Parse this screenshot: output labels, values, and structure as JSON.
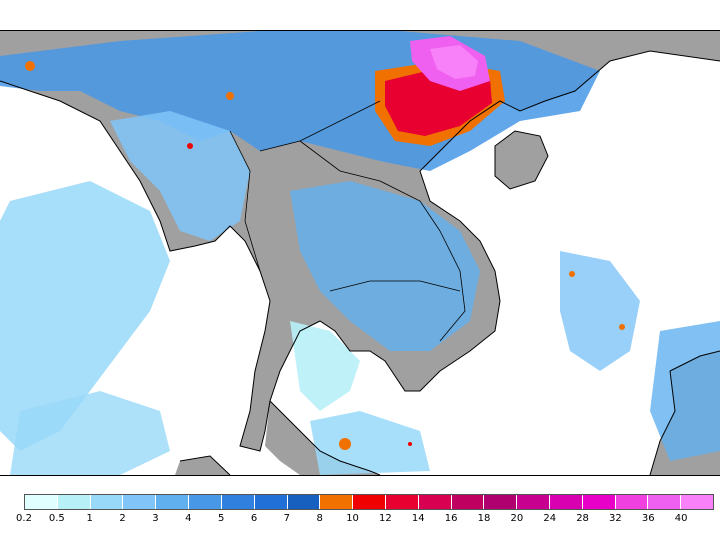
{
  "map": {
    "layers": [
      "land",
      "precipitation",
      "coastline",
      "borders"
    ],
    "land_color": "#a0a0a0",
    "ocean_color": "#ffffff",
    "coastline_color": "#000000"
  },
  "legend": {
    "tick_labels": [
      "0.2",
      "0.5",
      "1",
      "2",
      "3",
      "4",
      "5",
      "6",
      "7",
      "8",
      "10",
      "12",
      "14",
      "16",
      "18",
      "20",
      "24",
      "28",
      "32",
      "36",
      "40"
    ],
    "colors": [
      "#e0ffff",
      "#b8f0f8",
      "#98d8f8",
      "#80c4f8",
      "#60b0f0",
      "#4898e8",
      "#3080e0",
      "#2070d8",
      "#1860c0",
      "#f07000",
      "#f00000",
      "#e80030",
      "#d80050",
      "#c00060",
      "#b00070",
      "#c80090",
      "#d800b0",
      "#e800c8",
      "#f040e0",
      "#f060f0",
      "#f880f8"
    ]
  }
}
